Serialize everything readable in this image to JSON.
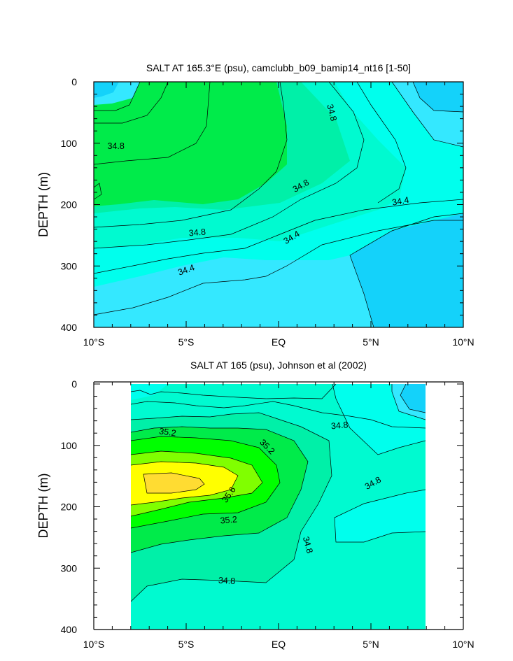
{
  "chart_data": [
    {
      "type": "contour",
      "title": "SALT AT 165.3°E (psu), camclubb_b09_bamip14_nt16 [1-50]",
      "xlabel": "",
      "ylabel": "DEPTH (m)",
      "xlim": [
        -10,
        10
      ],
      "ylim": [
        400,
        0
      ],
      "x_tick_labels": [
        "10°S",
        "5°S",
        "EQ",
        "5°N",
        "10°N"
      ],
      "x_tick_values": [
        -10,
        -5,
        0,
        5,
        10
      ],
      "y_tick_labels": [
        "0",
        "100",
        "200",
        "300",
        "400"
      ],
      "y_tick_values": [
        0,
        100,
        200,
        300,
        400
      ],
      "contour_labels": [
        {
          "text": "34.8",
          "x": -8.8,
          "depth": 104,
          "angle": 0
        },
        {
          "text": "34.8",
          "x": 2.9,
          "depth": 50,
          "angle": 75
        },
        {
          "text": "34.8",
          "x": 1.2,
          "depth": 169,
          "angle": -30
        },
        {
          "text": "34.8",
          "x": -4.4,
          "depth": 245,
          "angle": -5
        },
        {
          "text": "34.4",
          "x": 0.7,
          "depth": 253,
          "angle": -32
        },
        {
          "text": "34.4",
          "x": -5.0,
          "depth": 306,
          "angle": -20
        },
        {
          "text": "34.4",
          "x": 6.6,
          "depth": 194,
          "angle": -10
        }
      ]
    },
    {
      "type": "contour",
      "title": "SALT AT 165 (psu), Johnson et al (2002)",
      "xlabel": "",
      "ylabel": "DEPTH (m)",
      "xlim": [
        -10,
        10
      ],
      "ylim": [
        400,
        0
      ],
      "x_tick_labels": [
        "10°S",
        "5°S",
        "EQ",
        "5°N",
        "10°N"
      ],
      "x_tick_values": [
        -10,
        -5,
        0,
        5,
        10
      ],
      "y_tick_labels": [
        "0",
        "100",
        "200",
        "300",
        "400"
      ],
      "y_tick_values": [
        0,
        100,
        200,
        300,
        400
      ],
      "contour_labels": [
        {
          "text": "35.2",
          "x": -6.0,
          "depth": 78,
          "angle": 8
        },
        {
          "text": "35.2",
          "x": -0.6,
          "depth": 102,
          "angle": 45
        },
        {
          "text": "35.6",
          "x": -2.7,
          "depth": 180,
          "angle": -55
        },
        {
          "text": "35.2",
          "x": -2.7,
          "depth": 221,
          "angle": -5
        },
        {
          "text": "34.8",
          "x": 3.3,
          "depth": 67,
          "angle": -5
        },
        {
          "text": "34.8",
          "x": 5.1,
          "depth": 161,
          "angle": -30
        },
        {
          "text": "34.8",
          "x": 1.6,
          "depth": 262,
          "angle": 75
        },
        {
          "text": "34.8",
          "x": -2.8,
          "depth": 320,
          "angle": 3
        }
      ]
    }
  ]
}
